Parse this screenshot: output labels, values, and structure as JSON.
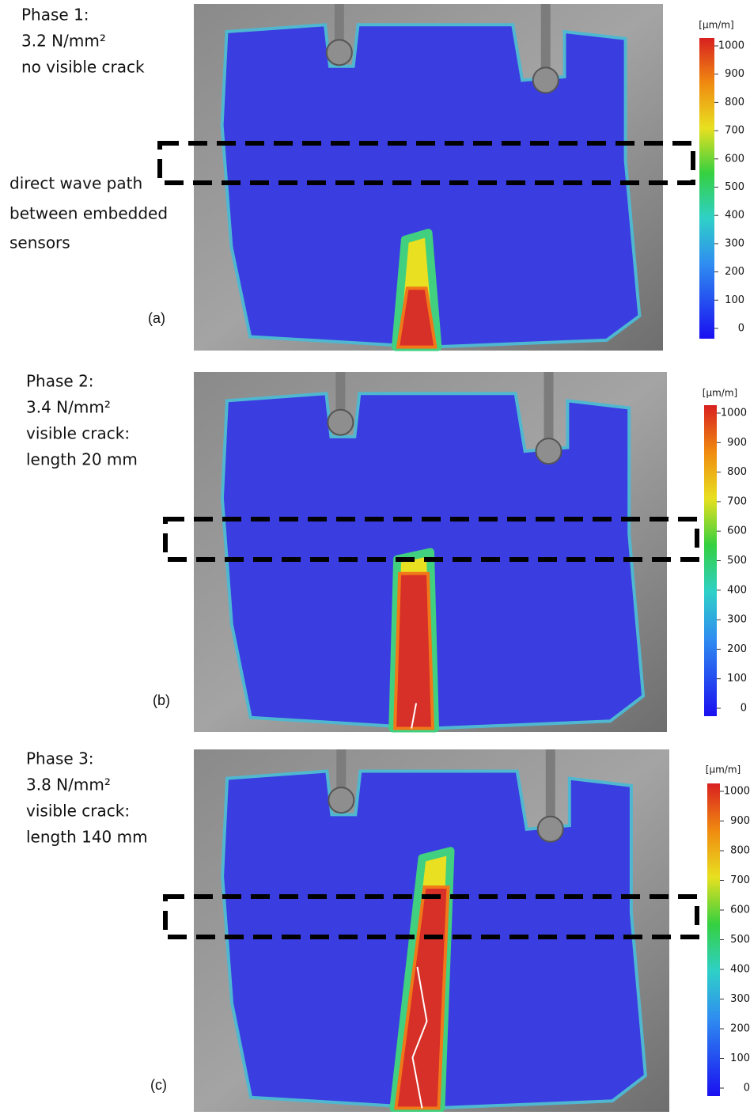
{
  "annotation": [
    "direct wave path",
    "between embedded",
    "sensors"
  ],
  "panels": [
    {
      "label": "(a)",
      "description": [
        "Phase 1:",
        "3.2 N/mm²",
        "no visible crack"
      ],
      "colorbar": {
        "unit": "[μm/m]",
        "ticks": [
          0,
          100,
          200,
          300,
          400,
          500,
          600,
          700,
          800,
          900,
          1000
        ]
      }
    },
    {
      "label": "(b)",
      "description": [
        "Phase 2:",
        "3.4 N/mm²",
        "visible crack:",
        "length 20 mm"
      ],
      "colorbar": {
        "unit": "[μm/m]",
        "ticks": [
          0,
          100,
          200,
          300,
          400,
          500,
          600,
          700,
          800,
          900,
          1000
        ]
      }
    },
    {
      "label": "(c)",
      "description": [
        "Phase 3:",
        "3.8 N/mm²",
        "visible crack:",
        "length 140 mm"
      ],
      "colorbar": {
        "unit": "[μm/m]",
        "ticks": [
          0,
          100,
          200,
          300,
          400,
          500,
          600,
          700,
          800,
          900,
          1000
        ]
      }
    }
  ]
}
